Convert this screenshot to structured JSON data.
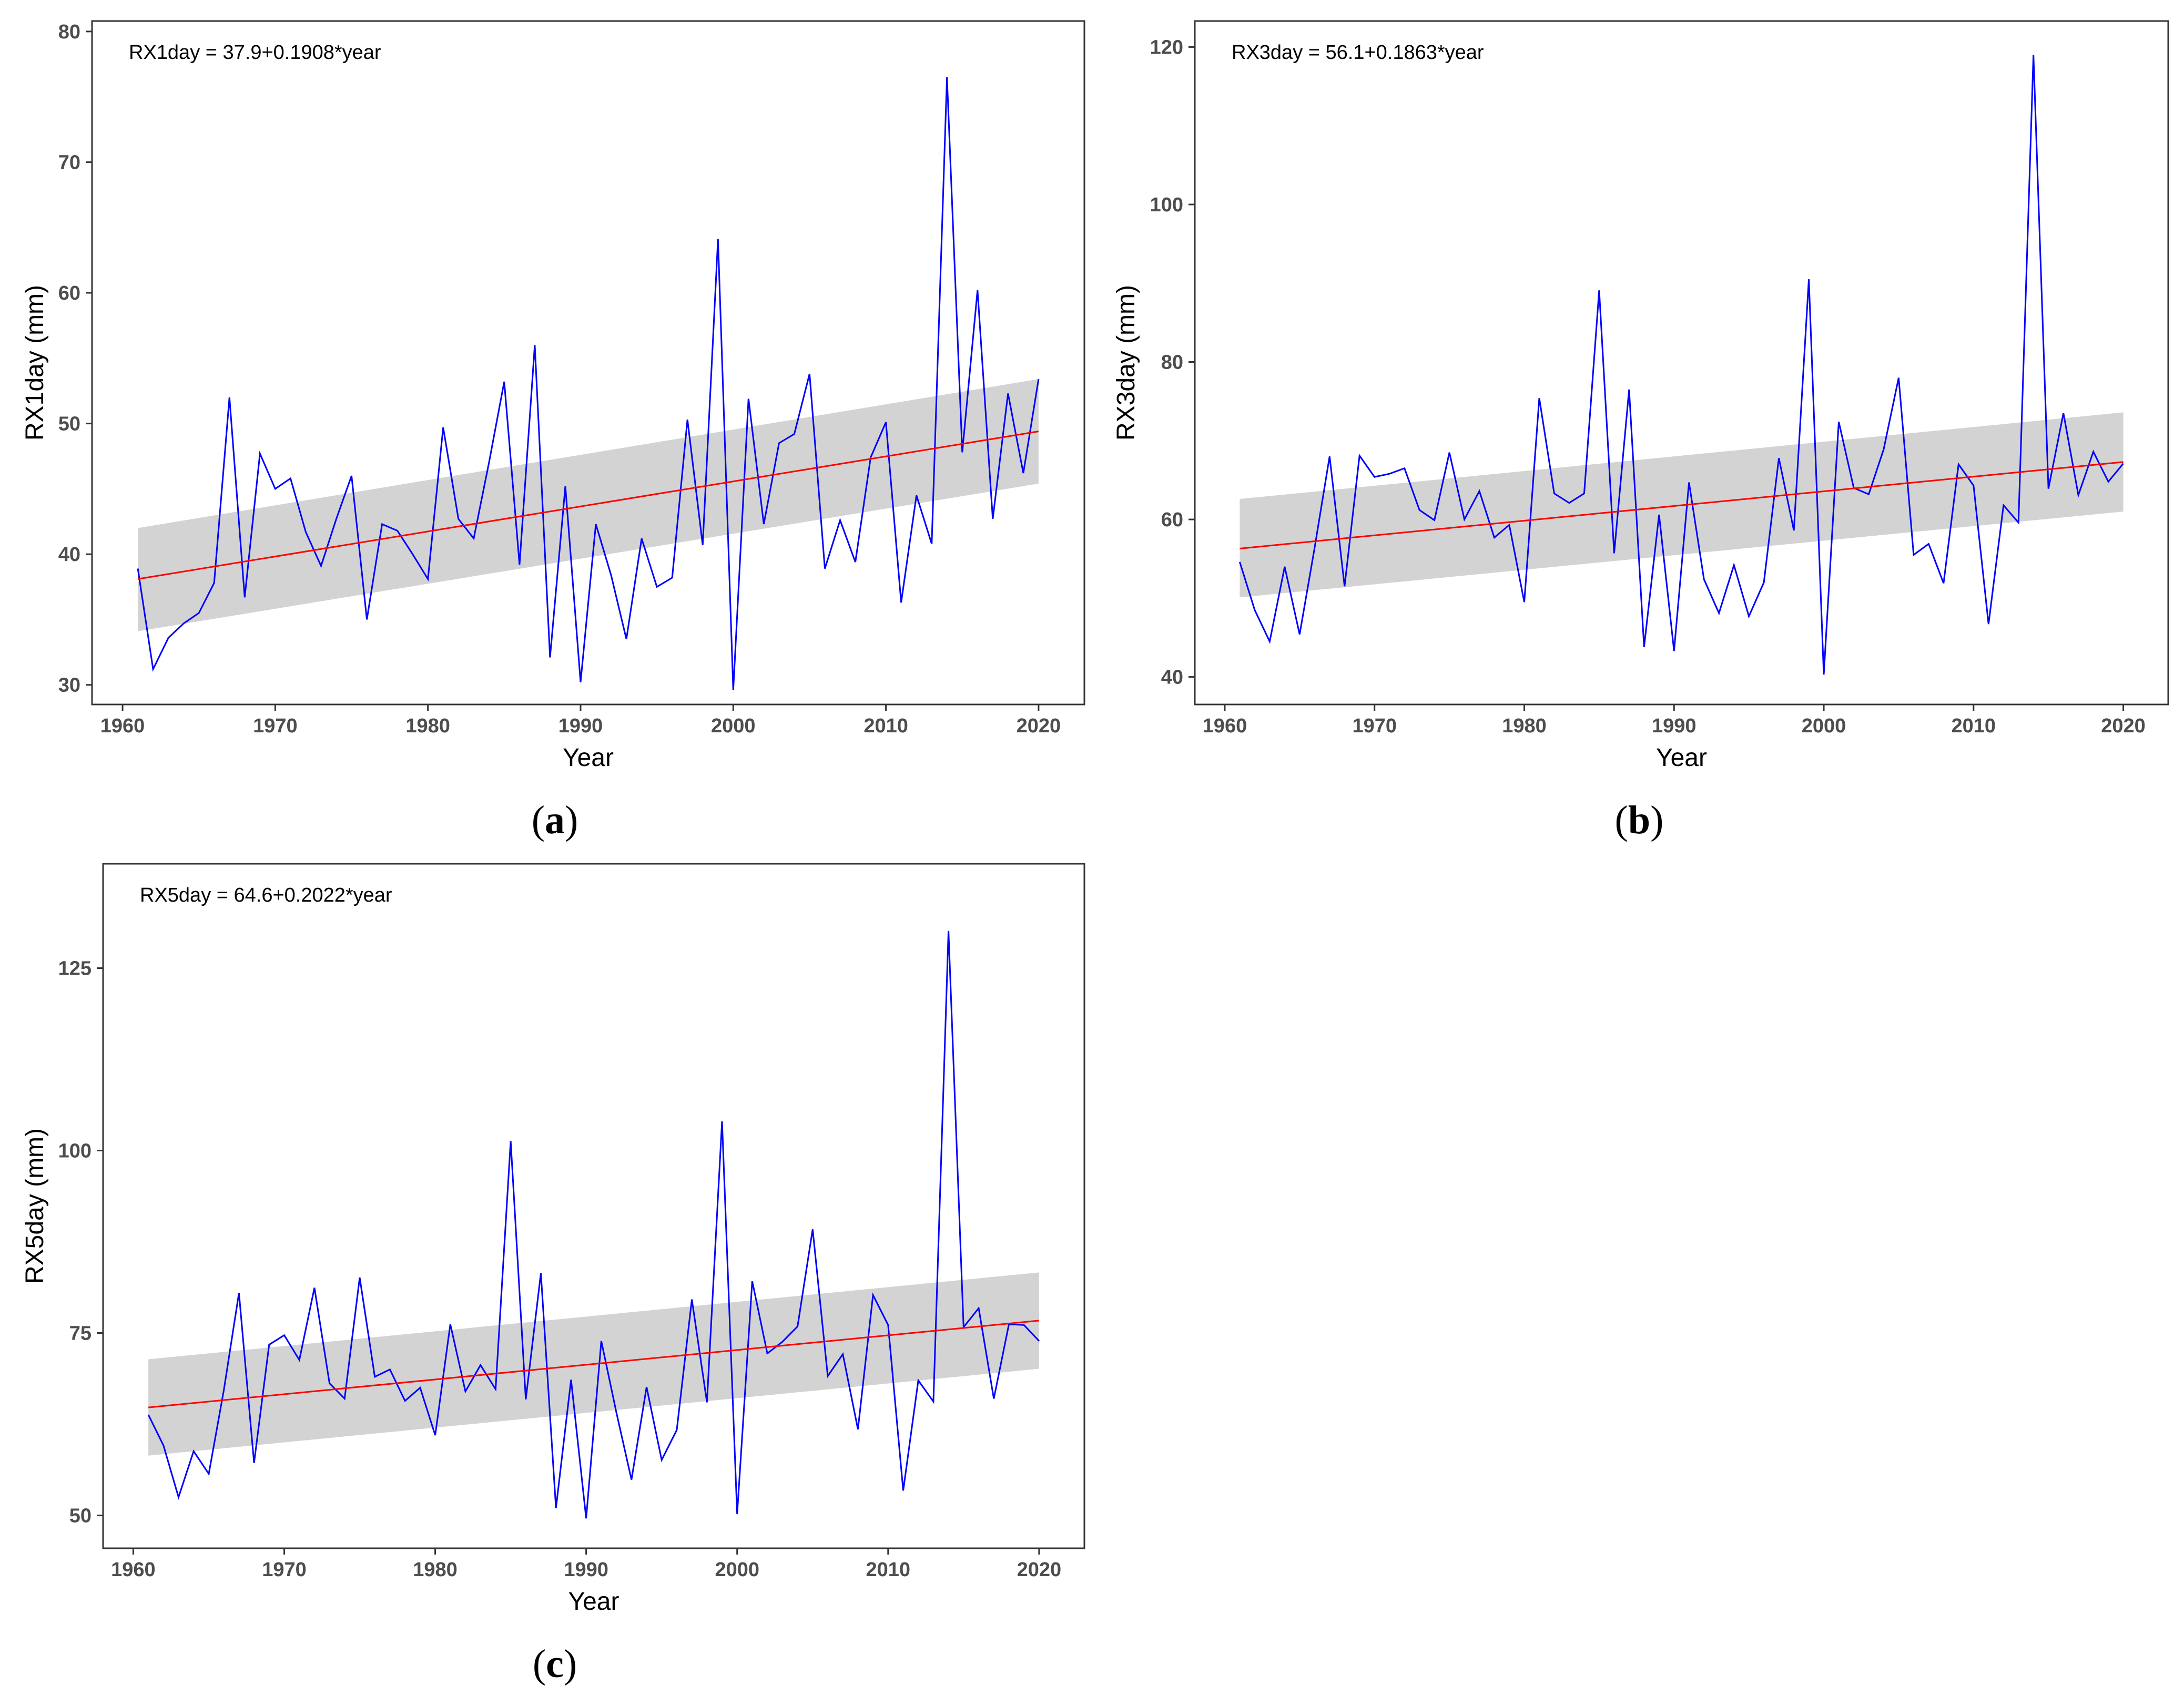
{
  "chart_data": [
    {
      "type": "line",
      "panel_label": "(a)",
      "caption_letter": "a",
      "equation": "RX1day = 37.9+0.1908*year",
      "xlabel": "Year",
      "ylabel": "RX1day (mm)",
      "xlim": [
        1958,
        2023
      ],
      "ylim": [
        28.5,
        80.8
      ],
      "xticks": [
        1960,
        1970,
        1980,
        1990,
        2000,
        2010,
        2020
      ],
      "yticks": [
        30,
        40,
        50,
        60,
        70,
        80
      ],
      "x": [
        1961,
        1962,
        1963,
        1964,
        1965,
        1966,
        1967,
        1968,
        1969,
        1970,
        1971,
        1972,
        1973,
        1974,
        1975,
        1976,
        1977,
        1978,
        1979,
        1980,
        1981,
        1982,
        1983,
        1984,
        1985,
        1986,
        1987,
        1988,
        1989,
        1990,
        1991,
        1992,
        1993,
        1994,
        1995,
        1996,
        1997,
        1998,
        1999,
        2000,
        2001,
        2002,
        2003,
        2004,
        2005,
        2006,
        2007,
        2008,
        2009,
        2010,
        2011,
        2012,
        2013,
        2014,
        2015,
        2016,
        2017,
        2018,
        2019,
        2020
      ],
      "series": [
        {
          "name": "RX1day",
          "color": "#0000ff",
          "values": [
            38.9,
            31.2,
            33.6,
            34.7,
            35.5,
            37.8,
            52.0,
            36.7,
            47.7,
            45.0,
            45.8,
            41.7,
            39.1,
            42.7,
            46.0,
            35.0,
            42.3,
            41.8,
            40.0,
            38.1,
            49.7,
            42.7,
            41.2,
            47.0,
            53.2,
            39.2,
            56.0,
            32.1,
            45.2,
            30.2,
            42.3,
            38.4,
            33.5,
            41.2,
            37.5,
            38.2,
            50.3,
            40.7,
            64.1,
            29.6,
            51.9,
            42.3,
            48.5,
            49.2,
            53.8,
            38.9,
            42.6,
            39.4,
            47.4,
            50.1,
            36.3,
            44.5,
            40.8,
            76.5,
            47.8,
            60.2,
            42.7,
            52.3,
            46.2,
            53.4
          ]
        }
      ],
      "trend": {
        "name": "Linear trend",
        "color": "#ff0000",
        "start": 38.1,
        "end": 49.4
      },
      "band": {
        "name": "Confidence interval",
        "color": "#d3d3d3",
        "upper_start": 42.0,
        "upper_end": 53.4,
        "lower_start": 34.1,
        "lower_end": 45.4
      }
    },
    {
      "type": "line",
      "panel_label": "(b)",
      "caption_letter": "b",
      "equation": "RX3day = 56.1+0.1863*year",
      "xlabel": "Year",
      "ylabel": "RX3day (mm)",
      "xlim": [
        1958,
        2023
      ],
      "ylim": [
        36.5,
        123.3
      ],
      "xticks": [
        1960,
        1970,
        1980,
        1990,
        2000,
        2010,
        2020
      ],
      "yticks": [
        40,
        60,
        80,
        100,
        120
      ],
      "x": [
        1961,
        1962,
        1963,
        1964,
        1965,
        1966,
        1967,
        1968,
        1969,
        1970,
        1971,
        1972,
        1973,
        1974,
        1975,
        1976,
        1977,
        1978,
        1979,
        1980,
        1981,
        1982,
        1983,
        1984,
        1985,
        1986,
        1987,
        1988,
        1989,
        1990,
        1991,
        1992,
        1993,
        1994,
        1995,
        1996,
        1997,
        1998,
        1999,
        2000,
        2001,
        2002,
        2003,
        2004,
        2005,
        2006,
        2007,
        2008,
        2009,
        2010,
        2011,
        2012,
        2013,
        2014,
        2015,
        2016,
        2017,
        2018,
        2019,
        2020
      ],
      "series": [
        {
          "name": "RX3day",
          "color": "#0000ff",
          "values": [
            54.6,
            48.5,
            44.5,
            54.0,
            45.4,
            56.4,
            68.0,
            51.5,
            68.1,
            65.4,
            65.8,
            66.5,
            61.2,
            59.9,
            68.5,
            60.0,
            63.6,
            57.7,
            59.3,
            49.5,
            75.4,
            63.3,
            62.1,
            63.3,
            89.1,
            55.7,
            76.5,
            43.8,
            60.6,
            43.3,
            64.7,
            52.4,
            48.1,
            54.2,
            47.7,
            52.0,
            67.8,
            58.6,
            90.5,
            40.3,
            72.4,
            64.0,
            63.2,
            68.9,
            78.0,
            55.5,
            56.9,
            51.9,
            67.0,
            64.3,
            46.7,
            61.8,
            59.6,
            119.0,
            63.9,
            73.5,
            63.1,
            68.6,
            64.8,
            67.1
          ]
        }
      ],
      "trend": {
        "name": "Linear trend",
        "color": "#ff0000",
        "start": 56.3,
        "end": 67.3
      },
      "band": {
        "name": "Confidence interval",
        "color": "#d3d3d3",
        "upper_start": 62.6,
        "upper_end": 73.6,
        "lower_start": 50.1,
        "lower_end": 61.0
      }
    },
    {
      "type": "line",
      "panel_label": "(c)",
      "caption_letter": "c",
      "equation": "RX5day = 64.6+0.2022*year",
      "xlabel": "Year",
      "ylabel": "RX5day (mm)",
      "xlim": [
        1958,
        2023
      ],
      "ylim": [
        45.5,
        139.3
      ],
      "xticks": [
        1960,
        1970,
        1980,
        1990,
        2000,
        2010,
        2020
      ],
      "yticks": [
        50,
        75,
        100,
        125
      ],
      "x": [
        1961,
        1962,
        1963,
        1964,
        1965,
        1966,
        1967,
        1968,
        1969,
        1970,
        1971,
        1972,
        1973,
        1974,
        1975,
        1976,
        1977,
        1978,
        1979,
        1980,
        1981,
        1982,
        1983,
        1984,
        1985,
        1986,
        1987,
        1988,
        1989,
        1990,
        1991,
        1992,
        1993,
        1994,
        1995,
        1996,
        1997,
        1998,
        1999,
        2000,
        2001,
        2002,
        2003,
        2004,
        2005,
        2006,
        2007,
        2008,
        2009,
        2010,
        2011,
        2012,
        2013,
        2014,
        2015,
        2016,
        2017,
        2018,
        2019,
        2020
      ],
      "series": [
        {
          "name": "RX5day",
          "color": "#0000ff",
          "values": [
            63.8,
            59.6,
            52.5,
            58.8,
            55.7,
            67.2,
            80.5,
            57.2,
            73.4,
            74.7,
            71.3,
            81.2,
            68.1,
            66.0,
            82.6,
            69.0,
            70.0,
            65.7,
            67.5,
            61.0,
            76.2,
            67.0,
            70.6,
            67.3,
            101.3,
            65.9,
            83.2,
            51.0,
            68.6,
            49.6,
            73.9,
            64.1,
            54.9,
            67.6,
            57.6,
            61.7,
            79.6,
            65.5,
            104.0,
            50.2,
            82.1,
            72.2,
            73.8,
            75.9,
            89.2,
            69.1,
            72.1,
            61.8,
            80.2,
            76.1,
            53.4,
            68.5,
            65.6,
            130.1,
            75.8,
            78.4,
            66.0,
            76.2,
            76.1,
            73.9
          ]
        }
      ],
      "trend": {
        "name": "Linear trend",
        "color": "#ff0000",
        "start": 64.8,
        "end": 76.7
      },
      "band": {
        "name": "Confidence interval",
        "color": "#d3d3d3",
        "upper_start": 71.4,
        "upper_end": 83.3,
        "lower_start": 58.2,
        "lower_end": 70.1
      }
    }
  ]
}
